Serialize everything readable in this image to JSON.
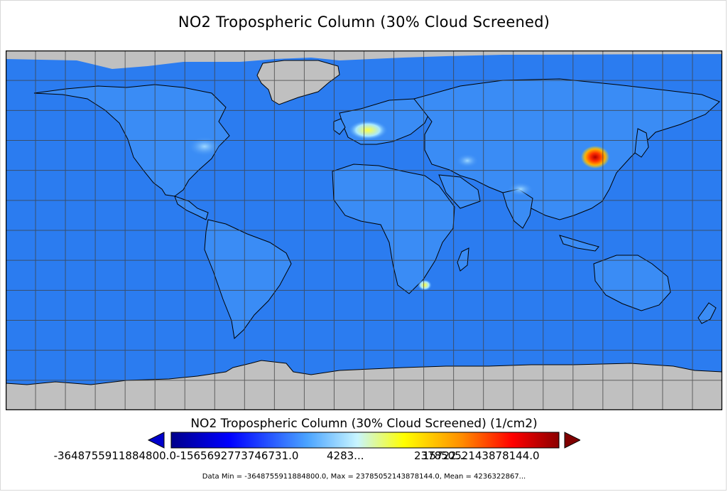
{
  "title": "NO2 Tropospheric Column (30% Cloud Screened)",
  "colorbar": {
    "title": "NO2 Tropospheric Column (30% Cloud Screened) (1/cm2)",
    "tick_labels": [
      "-3648755911884800.0",
      "-1565692773746731.0",
      "4283...",
      "15722...",
      "23785052143878144.0"
    ],
    "tick_text_raw": "-3648755911884800.0569927378707310428317528921572982905322758565214387814 4.0"
  },
  "stats": "Data Min = -3648755911884800.0, Max = 23785052143878144.0, Mean = 4236322867...",
  "colors": {
    "ocean": "#2b7cf0",
    "land_field": "#3a8cf5",
    "no_data": "#c0c0c0",
    "coast": "#000000",
    "grid": "#404040"
  },
  "chart_data": {
    "type": "heatmap",
    "title": "NO2 Tropospheric Column (30% Cloud Screened)",
    "units": "1/cm2",
    "data_min": -3648755911884800.0,
    "data_max": 2.3785052143878144e+16,
    "colorbar_range": [
      -3648755911884800.0,
      2.3785052143878144e+16
    ],
    "colormap": [
      "#00008b",
      "#0000ff",
      "#4aa3ff",
      "#c8f5ff",
      "#ffff00",
      "#ff8c00",
      "#ff0000",
      "#8b0000"
    ],
    "projection": "equirectangular",
    "grid": "on",
    "extend_arrows": "both"
  }
}
